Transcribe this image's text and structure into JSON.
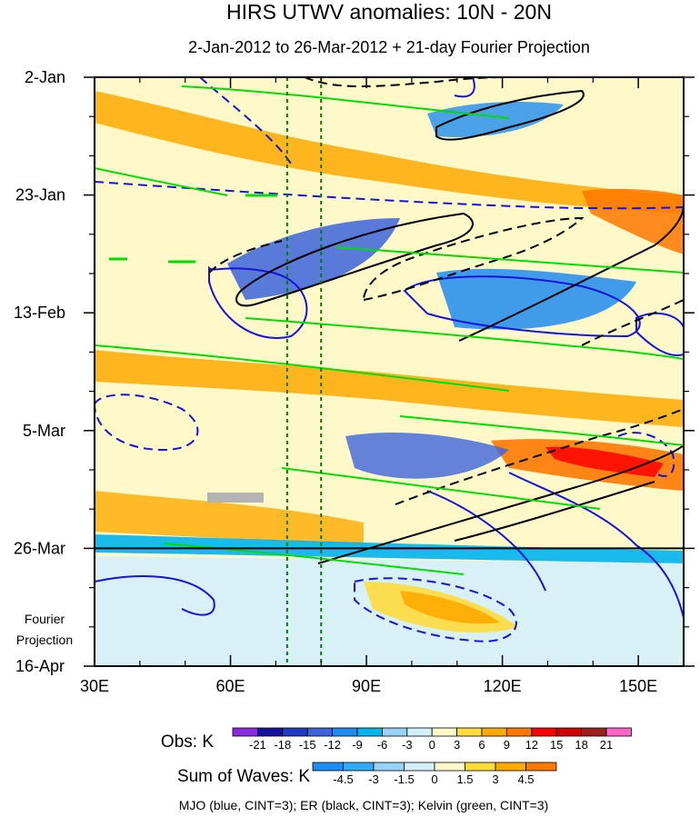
{
  "chart_data": {
    "type": "heatmap",
    "title": "HIRS UTWV anomalies: 10N - 20N",
    "subtitle": "2-Jan-2012 to 26-Mar-2012 + 21-day Fourier Projection",
    "xlabel": "",
    "ylabel": "",
    "x_range": [
      30,
      160
    ],
    "x_ticks": [
      30,
      60,
      90,
      120,
      150
    ],
    "x_tick_labels": [
      "30E",
      "60E",
      "90E",
      "120E",
      "150E"
    ],
    "y_ticks": [
      "2-Jan",
      "23-Jan",
      "13-Feb",
      "5-Mar",
      "26-Mar",
      "16-Apr"
    ],
    "y_tick_days": [
      0,
      21,
      42,
      63,
      84,
      105
    ],
    "projection_start": "26-Mar",
    "projection_label": [
      "Fourier",
      "Projection"
    ],
    "vertical_lines_lon": [
      72.5,
      80
    ],
    "obs_colorbar": {
      "label": "Obs: K",
      "levels": [
        -21,
        -18,
        -15,
        -12,
        -9,
        -6,
        -3,
        0,
        3,
        6,
        9,
        12,
        15,
        18,
        21
      ],
      "colors": [
        "#8a2be2",
        "#1414a0",
        "#1e3cc8",
        "#3c64dc",
        "#1e8cf0",
        "#00b4f0",
        "#96d2fa",
        "#d4f0fc",
        "#fff8c8",
        "#ffdc3c",
        "#ffaa00",
        "#ff7800",
        "#ff0000",
        "#d20000",
        "#a01e1e",
        "#ff64c8"
      ]
    },
    "waves_colorbar": {
      "label": "Sum of Waves: K",
      "levels": [
        -4.5,
        -3,
        -1.5,
        0,
        1.5,
        3,
        4.5
      ],
      "colors": [
        "#1e8cf0",
        "#32aaf5",
        "#96d2fa",
        "#d4f0fc",
        "#fff8c8",
        "#ffdc3c",
        "#ffaa00",
        "#ff7800"
      ]
    },
    "legend_text": "MJO (blue, CINT=3); ER (black, CINT=3); Kelvin (green, CINT=3)",
    "series": [
      {
        "wave": "MJO",
        "color": "#1414dc"
      },
      {
        "wave": "ER",
        "color": "#000000"
      },
      {
        "wave": "Kelvin",
        "color": "#00dc00"
      }
    ]
  }
}
